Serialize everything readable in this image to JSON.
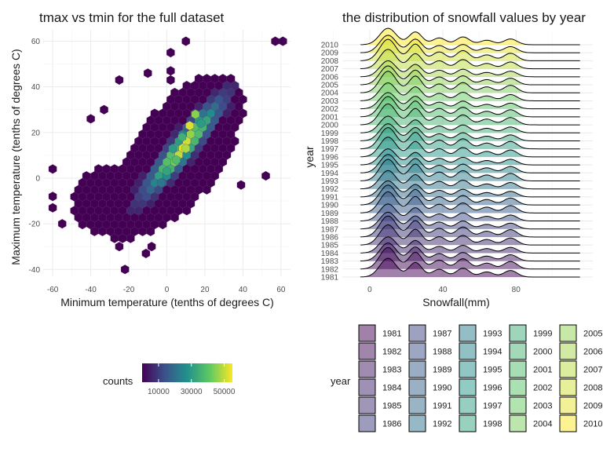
{
  "chart_data": [
    {
      "type": "hexbin",
      "title": "tmax vs tmin for the full dataset",
      "xlabel": "Minimum temperature (tenths of degrees C)",
      "ylabel": "Maximum temperature (tenths of degrees C)",
      "xlim": [
        -65,
        65
      ],
      "ylim": [
        -43,
        65
      ],
      "xticks": [
        -60,
        -40,
        -20,
        0,
        20,
        40,
        60
      ],
      "yticks": [
        -40,
        -20,
        0,
        20,
        40,
        60
      ],
      "grid": true,
      "colorbar": {
        "title": "counts",
        "range": [
          0,
          55000
        ],
        "ticks": [
          10000,
          30000,
          50000
        ],
        "tick_labels": [
          "10000",
          "30000",
          "50000"
        ],
        "colors": [
          "#440154",
          "#3b528b",
          "#21918c",
          "#5ec962",
          "#fde725"
        ]
      },
      "bins": [
        {
          "x": -60,
          "y": 4,
          "count": 15
        },
        {
          "x": -60,
          "y": -8,
          "count": 12
        },
        {
          "x": -60,
          "y": -13,
          "count": 10
        },
        {
          "x": -55,
          "y": -20,
          "count": 8
        },
        {
          "x": -40,
          "y": 26,
          "count": 6
        },
        {
          "x": -33,
          "y": 30,
          "count": 5
        },
        {
          "x": -25,
          "y": 43,
          "count": 5
        },
        {
          "x": -22,
          "y": -40,
          "count": 3
        },
        {
          "x": -10,
          "y": 46,
          "count": 5
        },
        {
          "x": 2,
          "y": 55,
          "count": 4
        },
        {
          "x": 2,
          "y": 47,
          "count": 4
        },
        {
          "x": 2,
          "y": 43,
          "count": 4
        },
        {
          "x": 10,
          "y": 60,
          "count": 3
        },
        {
          "x": 57,
          "y": 60,
          "count": 3
        },
        {
          "x": 61,
          "y": 60,
          "count": 3
        },
        {
          "x": 52,
          "y": 1,
          "count": 5
        },
        {
          "x": 39,
          "y": -3,
          "count": 4
        },
        {
          "x": -11,
          "y": -33,
          "count": 4
        },
        {
          "x": -8,
          "y": -30,
          "count": 5
        },
        {
          "x": -25,
          "y": -30,
          "count": 5
        },
        {
          "x": 10,
          "y": 13,
          "count": 48000
        },
        {
          "x": 12,
          "y": 23,
          "count": 52000
        },
        {
          "x": 15,
          "y": 28,
          "count": 45000
        },
        {
          "x": 5,
          "y": 8,
          "count": 38000
        },
        {
          "x": 0,
          "y": 3,
          "count": 32000
        },
        {
          "x": -3,
          "y": -2,
          "count": 22000
        },
        {
          "x": 8,
          "y": 18,
          "count": 35000
        },
        {
          "x": 18,
          "y": 24,
          "count": 30000
        },
        {
          "x": 3,
          "y": 13,
          "count": 30000
        }
      ]
    },
    {
      "type": "ridgeline",
      "title": "the distribution of snowfall values by year",
      "xlabel": "Snowfall(mm)",
      "ylabel": "year",
      "xlim": [
        -15,
        122
      ],
      "xticks": [
        0,
        40,
        80
      ],
      "grid": true,
      "categories": [
        "1981",
        "1982",
        "1983",
        "1984",
        "1985",
        "1986",
        "1987",
        "1988",
        "1989",
        "1990",
        "1991",
        "1992",
        "1993",
        "1994",
        "1995",
        "1996",
        "1997",
        "1998",
        "1999",
        "2000",
        "2001",
        "2002",
        "2003",
        "2004",
        "2005",
        "2006",
        "2007",
        "2008",
        "2009",
        "2010"
      ],
      "density_peaks": [
        {
          "snowfall_mm": 10,
          "height": 0.8
        },
        {
          "snowfall_mm": 25,
          "height": 0.62
        },
        {
          "snowfall_mm": 38,
          "height": 0.33
        },
        {
          "snowfall_mm": 51,
          "height": 0.38
        },
        {
          "snowfall_mm": 64,
          "height": 0.22
        },
        {
          "snowfall_mm": 77,
          "height": 0.28
        }
      ],
      "colors": [
        "#440154",
        "#3b528b",
        "#21918c",
        "#5ec962",
        "#fde725"
      ],
      "fill_opacity": 0.5
    }
  ],
  "legend": {
    "title": "year",
    "columns": [
      [
        "1981",
        "1982",
        "1983",
        "1984",
        "1985",
        "1986"
      ],
      [
        "1987",
        "1988",
        "1989",
        "1990",
        "1991",
        "1992"
      ],
      [
        "1993",
        "1994",
        "1995",
        "1996",
        "1997",
        "1998"
      ],
      [
        "1999",
        "2000",
        "2001",
        "2002",
        "2003",
        "2004"
      ],
      [
        "2005",
        "2006",
        "2007",
        "2008",
        "2009",
        "2010"
      ]
    ]
  }
}
